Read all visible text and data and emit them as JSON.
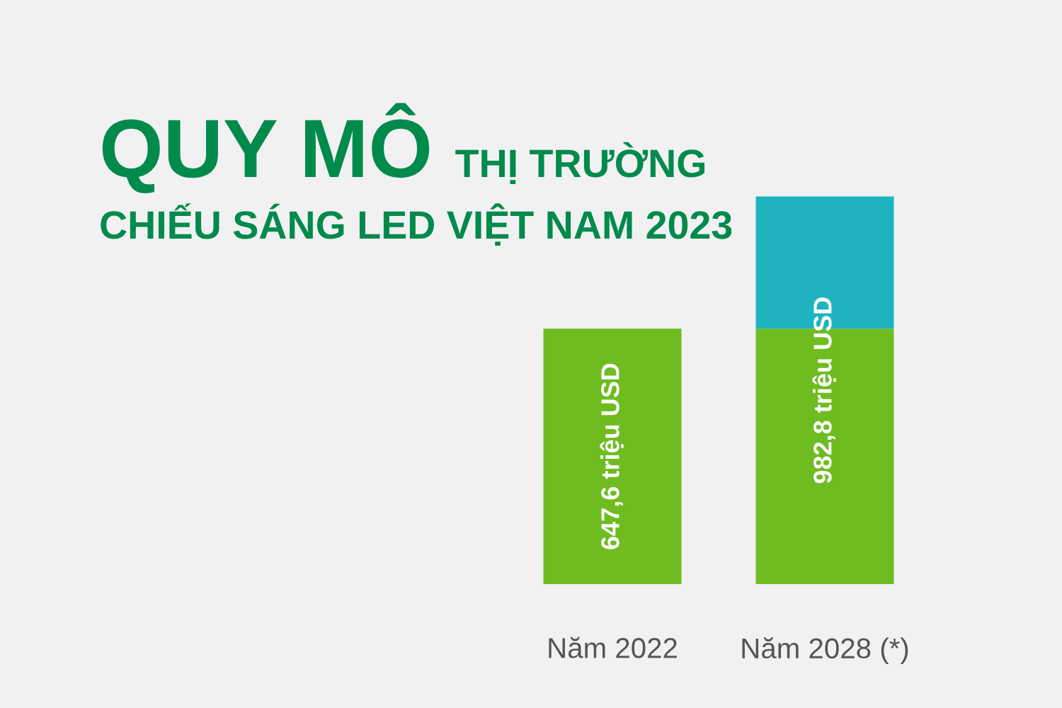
{
  "chart_data": {
    "type": "bar",
    "title": "QUY MÔ",
    "subtitle": "THỊ TRƯỜNG\nCHIẾU SÁNG LED VIỆT NAM 2023",
    "categories": [
      "Năm 2022",
      "Năm 2028 (*)"
    ],
    "stacked": true,
    "series": [
      {
        "color": "#6fbc21",
        "values": [
          647.6,
          647.6
        ],
        "value_labels": [
          "647,6 triệu USD",
          null
        ]
      },
      {
        "color": "#1fb3bf",
        "values": [
          null,
          335.2
        ]
      }
    ],
    "totals": [
      null,
      "982,8 triệu USD"
    ]
  }
}
